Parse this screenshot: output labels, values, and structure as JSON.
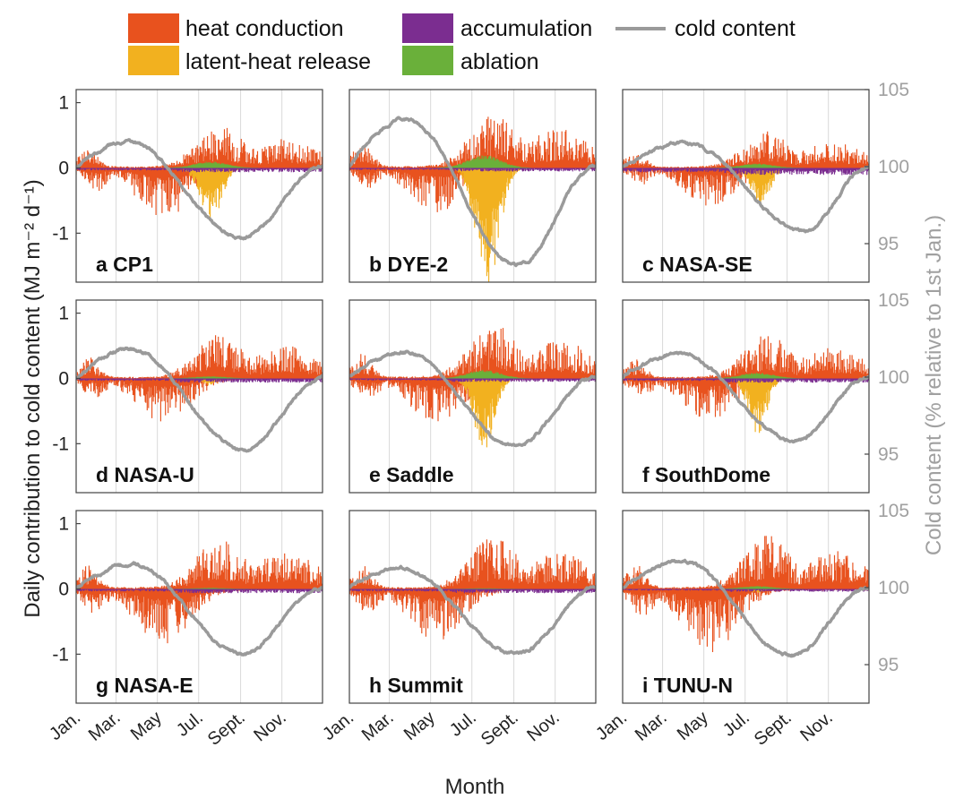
{
  "chart_data": {
    "type": "bar",
    "legend": {
      "placement": "top",
      "entries": [
        {
          "key": "heat",
          "label": "heat conduction",
          "color": "#e8521e"
        },
        {
          "key": "latent",
          "label": "latent-heat release",
          "color": "#f2b11f"
        },
        {
          "key": "accum",
          "label": "accumulation",
          "color": "#7b2d90"
        },
        {
          "key": "abl",
          "label": "ablation",
          "color": "#6ab03a"
        },
        {
          "key": "cold",
          "label": "cold content",
          "color": "#9a9a9a"
        }
      ]
    },
    "xlabel": "Month",
    "ylabel_left": "Daily contribution to cold content (MJ m⁻² d⁻¹)",
    "ylabel_right": "Cold content (% relative to 1st Jan.)",
    "ylim_left": [
      -1.75,
      1.2
    ],
    "yticks_left": [
      "1",
      "0",
      "-1"
    ],
    "ylim_right": [
      92.5,
      105
    ],
    "yticks_right": [
      "105",
      "100",
      "95"
    ],
    "month_ticks": [
      "Jan.",
      "Mar.",
      "May",
      "Jul.",
      "Sept.",
      "Nov."
    ],
    "month_days": [
      1,
      60,
      121,
      182,
      244,
      305
    ],
    "panels": [
      {
        "label": "a CP1",
        "heat_pos": 0.38,
        "heat_neg": -0.45,
        "latent_min": -0.72,
        "latent_center": 200,
        "latent_width": 22,
        "abl_max": 0.09,
        "accum_min": -0.06,
        "cc_peak": 101.6,
        "cc_peak_day": 80,
        "cc_min": 95.4,
        "cc_min_day": 245
      },
      {
        "label": "b DYE-2",
        "heat_pos": 0.5,
        "heat_neg": -0.38,
        "latent_min": -1.55,
        "latent_center": 205,
        "latent_width": 24,
        "abl_max": 0.18,
        "accum_min": -0.05,
        "cc_peak": 103.1,
        "cc_peak_day": 85,
        "cc_min": 93.6,
        "cc_min_day": 250
      },
      {
        "label": "c NASA-SE",
        "heat_pos": 0.33,
        "heat_neg": -0.32,
        "latent_min": -0.5,
        "latent_center": 205,
        "latent_width": 20,
        "abl_max": 0.06,
        "accum_min": -0.1,
        "cc_peak": 101.5,
        "cc_peak_day": 95,
        "cc_min": 95.8,
        "cc_min_day": 270
      },
      {
        "label": "d NASA-U",
        "heat_pos": 0.42,
        "heat_neg": -0.38,
        "latent_min": -0.1,
        "latent_center": 200,
        "latent_width": 15,
        "abl_max": 0.03,
        "accum_min": -0.06,
        "cc_peak": 101.8,
        "cc_peak_day": 80,
        "cc_min": 95.3,
        "cc_min_day": 250
      },
      {
        "label": "e Saddle",
        "heat_pos": 0.5,
        "heat_neg": -0.38,
        "latent_min": -0.92,
        "latent_center": 200,
        "latent_width": 22,
        "abl_max": 0.12,
        "accum_min": -0.05,
        "cc_peak": 101.6,
        "cc_peak_day": 85,
        "cc_min": 95.5,
        "cc_min_day": 245
      },
      {
        "label": "f SouthDome",
        "heat_pos": 0.4,
        "heat_neg": -0.35,
        "latent_min": -0.72,
        "latent_center": 200,
        "latent_width": 20,
        "abl_max": 0.08,
        "accum_min": -0.06,
        "cc_peak": 101.5,
        "cc_peak_day": 85,
        "cc_min": 95.9,
        "cc_min_day": 255
      },
      {
        "label": "g NASA-E",
        "heat_pos": 0.48,
        "heat_neg": -0.5,
        "latent_min": -0.02,
        "latent_center": 200,
        "latent_width": 15,
        "abl_max": 0.015,
        "accum_min": -0.06,
        "cc_peak": 101.5,
        "cc_peak_day": 85,
        "cc_min": 95.7,
        "cc_min_day": 245
      },
      {
        "label": "h Summit",
        "heat_pos": 0.48,
        "heat_neg": -0.45,
        "latent_min": -0.01,
        "latent_center": 200,
        "latent_width": 15,
        "abl_max": 0.01,
        "accum_min": -0.06,
        "cc_peak": 101.3,
        "cc_peak_day": 75,
        "cc_min": 95.7,
        "cc_min_day": 250
      },
      {
        "label": "i TUNU-N",
        "heat_pos": 0.5,
        "heat_neg": -0.55,
        "latent_min": -0.05,
        "latent_center": 200,
        "latent_width": 15,
        "abl_max": 0.04,
        "accum_min": -0.04,
        "cc_peak": 101.7,
        "cc_peak_day": 90,
        "cc_min": 95.6,
        "cc_min_day": 250
      }
    ]
  }
}
